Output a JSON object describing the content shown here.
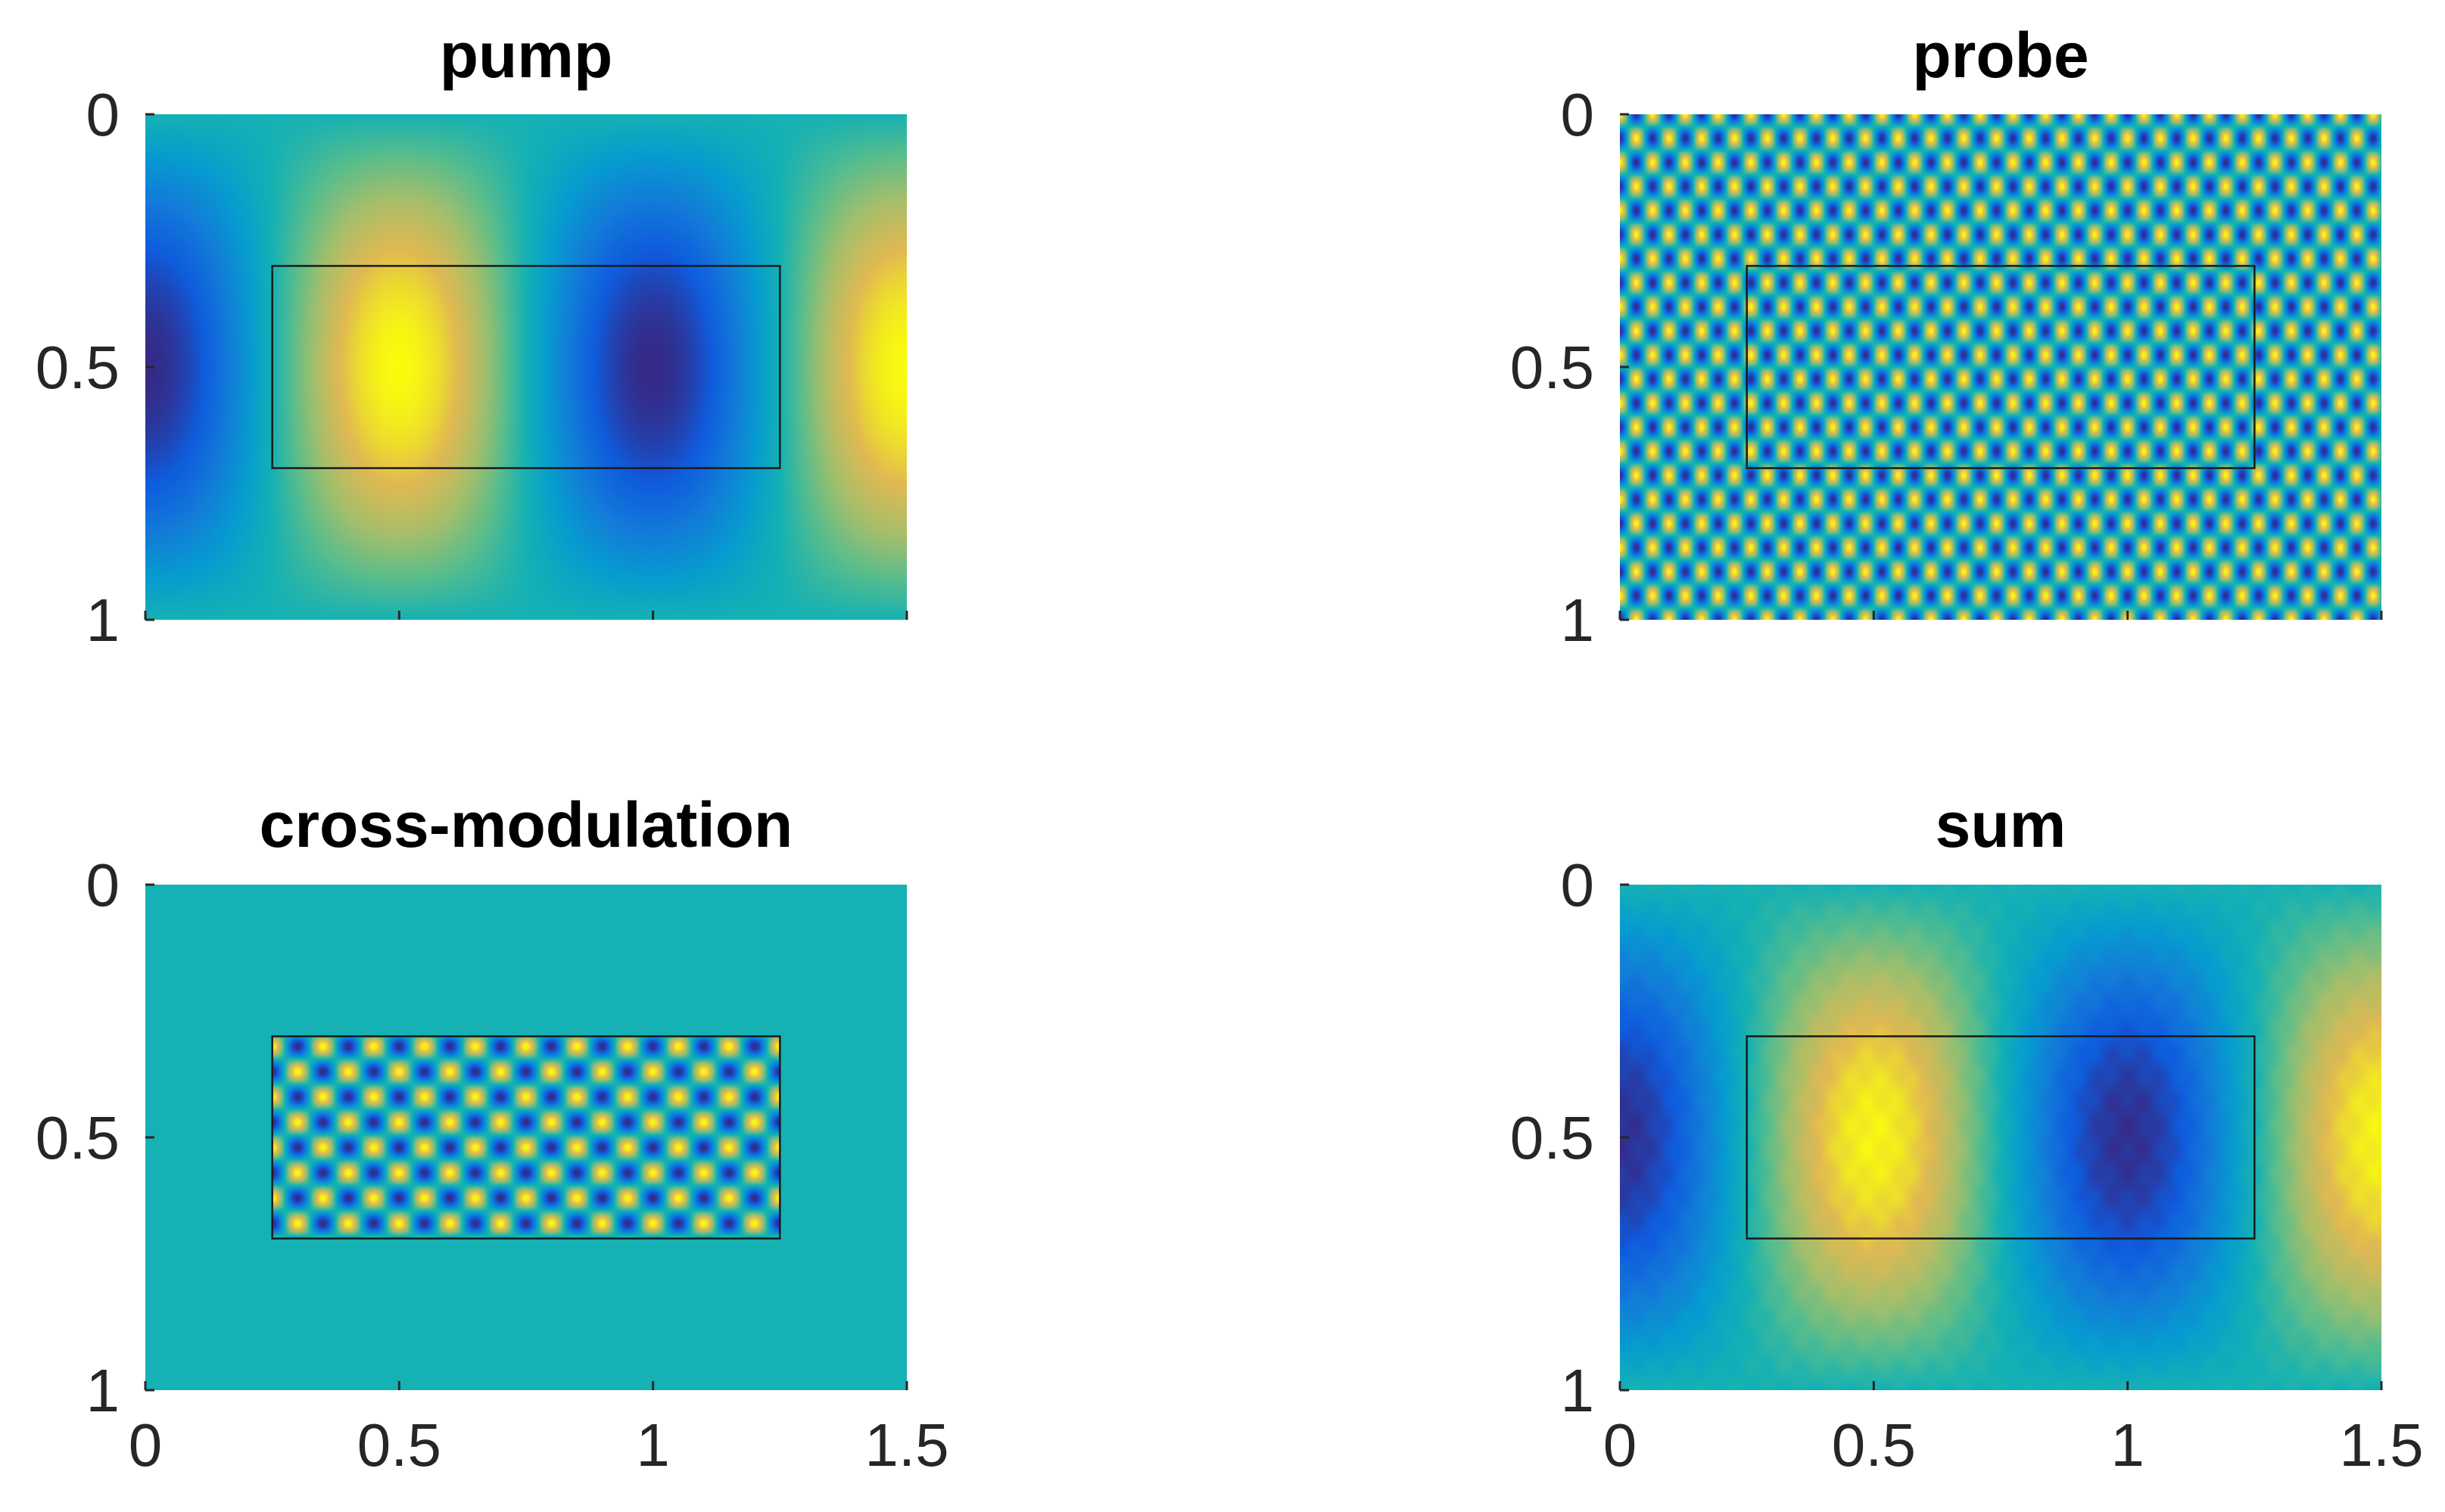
{
  "chart_data": [
    {
      "type": "heatmap",
      "title": "pump",
      "field": "pump",
      "colormap": "parula",
      "xlim": [
        0,
        1.5
      ],
      "ylim": [
        0,
        1
      ],
      "y_direction": "reversed",
      "xticks": [
        0,
        0.5,
        1,
        1.5
      ],
      "xtick_labels": [],
      "yticks": [
        0,
        0.5,
        1
      ],
      "ytick_labels": [
        "0",
        "0.5",
        "1"
      ],
      "region": {
        "x0": 0.25,
        "x1": 1.25,
        "y0": 0.3,
        "y1": 0.7
      }
    },
    {
      "type": "heatmap",
      "title": "probe",
      "field": "probe",
      "colormap": "parula",
      "xlim": [
        0,
        1.5
      ],
      "ylim": [
        0,
        1
      ],
      "y_direction": "reversed",
      "xticks": [
        0,
        0.5,
        1,
        1.5
      ],
      "xtick_labels": [],
      "yticks": [
        0,
        0.5,
        1
      ],
      "ytick_labels": [
        "0",
        "0.5",
        "1"
      ],
      "region": {
        "x0": 0.25,
        "x1": 1.25,
        "y0": 0.3,
        "y1": 0.7
      }
    },
    {
      "type": "heatmap",
      "title": "cross-modulation",
      "field": "cross",
      "colormap": "parula",
      "xlim": [
        0,
        1.5
      ],
      "ylim": [
        0,
        1
      ],
      "y_direction": "reversed",
      "xticks": [
        0,
        0.5,
        1,
        1.5
      ],
      "xtick_labels": [
        "0",
        "0.5",
        "1",
        "1.5"
      ],
      "yticks": [
        0,
        0.5,
        1
      ],
      "ytick_labels": [
        "0",
        "0.5",
        "1"
      ],
      "region": {
        "x0": 0.25,
        "x1": 1.25,
        "y0": 0.3,
        "y1": 0.7
      }
    },
    {
      "type": "heatmap",
      "title": "sum",
      "field": "sum",
      "colormap": "parula",
      "xlim": [
        0,
        1.5
      ],
      "ylim": [
        0,
        1
      ],
      "y_direction": "reversed",
      "xticks": [
        0,
        0.5,
        1,
        1.5
      ],
      "xtick_labels": [
        "0",
        "0.5",
        "1",
        "1.5"
      ],
      "yticks": [
        0,
        0.5,
        1
      ],
      "ytick_labels": [
        "0",
        "0.5",
        "1"
      ],
      "region": {
        "x0": 0.25,
        "x1": 1.25,
        "y0": 0.3,
        "y1": 0.7
      }
    }
  ]
}
